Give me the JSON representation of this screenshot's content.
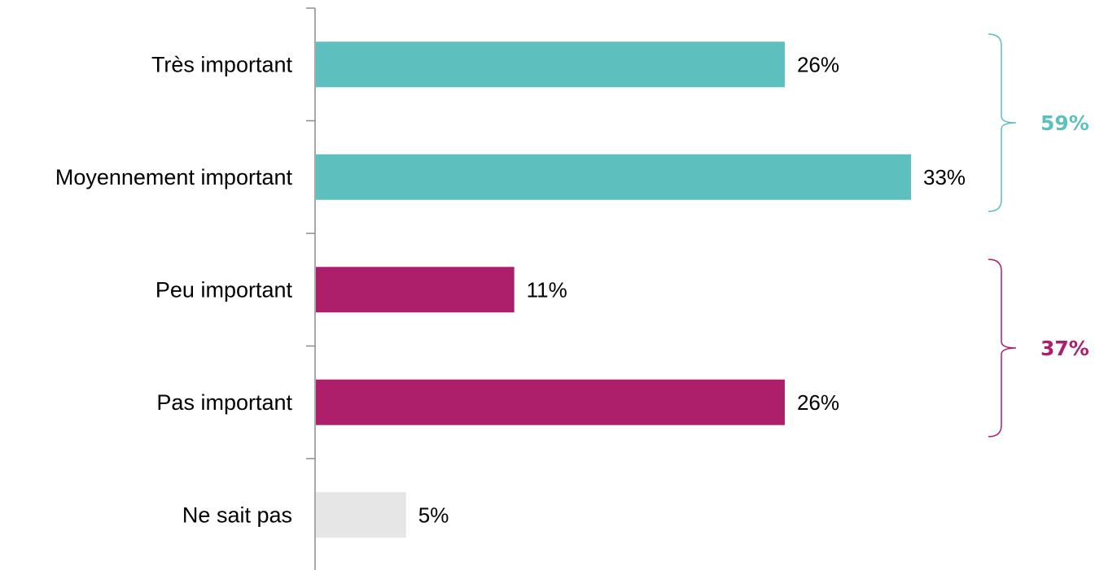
{
  "chart_data": {
    "type": "bar",
    "orientation": "horizontal",
    "categories": [
      "Très important",
      "Moyennement important",
      "Peu important",
      "Pas important",
      "Ne sait pas"
    ],
    "values": [
      26,
      33,
      11,
      26,
      5
    ],
    "value_labels": [
      "26%",
      "33%",
      "11%",
      "26%",
      "5%"
    ],
    "bar_colors": [
      "#5ebfbf",
      "#5ebfbf",
      "#ad1f6b",
      "#ad1f6b",
      "#e6e6e6"
    ],
    "title": "",
    "xlabel": "",
    "ylabel": "",
    "xlim": [
      0,
      33
    ],
    "grid": false,
    "groups": [
      {
        "label": "59%",
        "value": 59,
        "from": 0,
        "to": 1,
        "color": "#5ebfbf"
      },
      {
        "label": "37%",
        "value": 37,
        "from": 2,
        "to": 3,
        "color": "#ad1f6b"
      }
    ]
  }
}
